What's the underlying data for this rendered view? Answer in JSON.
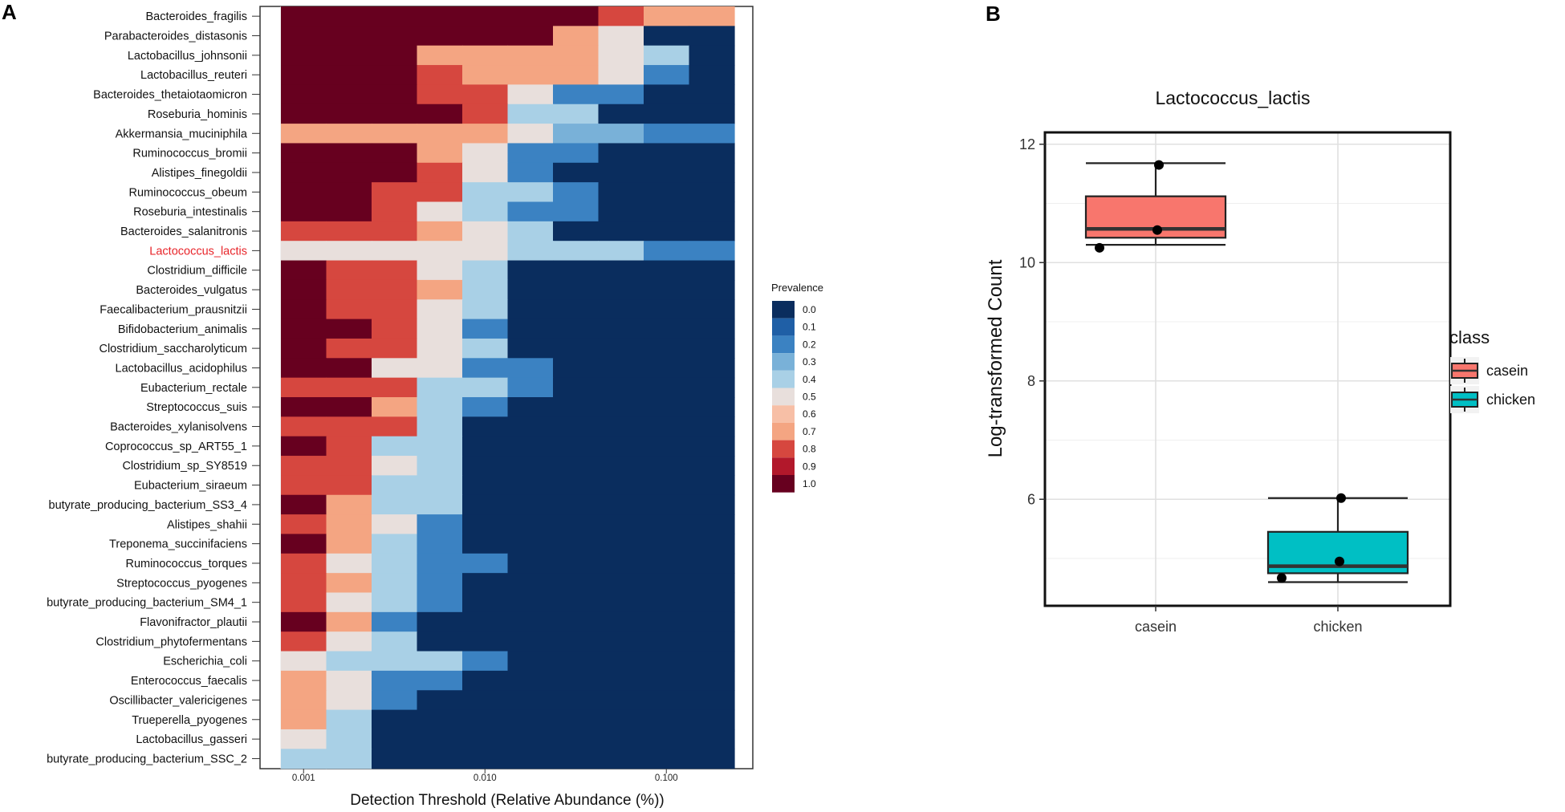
{
  "panel_labels": {
    "a": "A",
    "b": "B"
  },
  "chart_data": [
    {
      "type": "heatmap",
      "panel": "A",
      "title": "",
      "xlabel": "Detection Threshold (Relative Abundance (%))",
      "ylabel": "",
      "x_scale": "log",
      "x_ticks": [
        "0.001",
        "0.010",
        "0.100"
      ],
      "x_bins": 10,
      "highlight_row": "Lactococcus_lactis",
      "highlight_color": "#e8262b",
      "legend": {
        "title": "Prevalence",
        "levels": [
          "0.0",
          "0.1",
          "0.2",
          "0.3",
          "0.4",
          "0.5",
          "0.6",
          "0.7",
          "0.8",
          "0.9",
          "1.0"
        ],
        "colors": [
          "#0a2d5e",
          "#1f5fa6",
          "#3b82c2",
          "#79b1d8",
          "#a9d0e6",
          "#e8dfdc",
          "#f7bfa6",
          "#f4a582",
          "#d6473f",
          "#b2182b",
          "#67001f"
        ]
      },
      "rows": [
        {
          "name": "Bacteroides_fragilis",
          "values": [
            1.0,
            1.0,
            1.0,
            1.0,
            1.0,
            1.0,
            1.0,
            0.8,
            0.7,
            0.7
          ]
        },
        {
          "name": "Parabacteroides_distasonis",
          "values": [
            1.0,
            1.0,
            1.0,
            1.0,
            1.0,
            1.0,
            0.7,
            0.5,
            0.0,
            0.0
          ]
        },
        {
          "name": "Lactobacillus_johnsonii",
          "values": [
            1.0,
            1.0,
            1.0,
            0.7,
            0.7,
            0.7,
            0.7,
            0.5,
            0.4,
            0.0
          ]
        },
        {
          "name": "Lactobacillus_reuteri",
          "values": [
            1.0,
            1.0,
            1.0,
            0.8,
            0.7,
            0.7,
            0.7,
            0.5,
            0.2,
            0.0
          ]
        },
        {
          "name": "Bacteroides_thetaiotaomicron",
          "values": [
            1.0,
            1.0,
            1.0,
            0.8,
            0.8,
            0.5,
            0.2,
            0.2,
            0.0,
            0.0
          ]
        },
        {
          "name": "Roseburia_hominis",
          "values": [
            1.0,
            1.0,
            1.0,
            1.0,
            0.8,
            0.4,
            0.4,
            0.0,
            0.0,
            0.0
          ]
        },
        {
          "name": "Akkermansia_muciniphila",
          "values": [
            0.7,
            0.7,
            0.7,
            0.7,
            0.7,
            0.5,
            0.3,
            0.3,
            0.2,
            0.2
          ]
        },
        {
          "name": "Ruminococcus_bromii",
          "values": [
            1.0,
            1.0,
            1.0,
            0.7,
            0.5,
            0.2,
            0.2,
            0.0,
            0.0,
            0.0
          ]
        },
        {
          "name": "Alistipes_finegoldii",
          "values": [
            1.0,
            1.0,
            1.0,
            0.8,
            0.5,
            0.2,
            0.0,
            0.0,
            0.0,
            0.0
          ]
        },
        {
          "name": "Ruminococcus_obeum",
          "values": [
            1.0,
            1.0,
            0.8,
            0.8,
            0.4,
            0.4,
            0.2,
            0.0,
            0.0,
            0.0
          ]
        },
        {
          "name": "Roseburia_intestinalis",
          "values": [
            1.0,
            1.0,
            0.8,
            0.5,
            0.4,
            0.2,
            0.2,
            0.0,
            0.0,
            0.0
          ]
        },
        {
          "name": "Bacteroides_salanitronis",
          "values": [
            0.8,
            0.8,
            0.8,
            0.7,
            0.5,
            0.4,
            0.0,
            0.0,
            0.0,
            0.0
          ]
        },
        {
          "name": "Lactococcus_lactis",
          "values": [
            0.5,
            0.5,
            0.5,
            0.5,
            0.5,
            0.4,
            0.4,
            0.4,
            0.2,
            0.2
          ]
        },
        {
          "name": "Clostridium_difficile",
          "values": [
            1.0,
            0.8,
            0.8,
            0.5,
            0.4,
            0.0,
            0.0,
            0.0,
            0.0,
            0.0
          ]
        },
        {
          "name": "Bacteroides_vulgatus",
          "values": [
            1.0,
            0.8,
            0.8,
            0.7,
            0.4,
            0.0,
            0.0,
            0.0,
            0.0,
            0.0
          ]
        },
        {
          "name": "Faecalibacterium_prausnitzii",
          "values": [
            1.0,
            0.8,
            0.8,
            0.5,
            0.4,
            0.0,
            0.0,
            0.0,
            0.0,
            0.0
          ]
        },
        {
          "name": "Bifidobacterium_animalis",
          "values": [
            1.0,
            1.0,
            0.8,
            0.5,
            0.2,
            0.0,
            0.0,
            0.0,
            0.0,
            0.0
          ]
        },
        {
          "name": "Clostridium_saccharolyticum",
          "values": [
            1.0,
            0.8,
            0.8,
            0.5,
            0.4,
            0.0,
            0.0,
            0.0,
            0.0,
            0.0
          ]
        },
        {
          "name": "Lactobacillus_acidophilus",
          "values": [
            1.0,
            1.0,
            0.5,
            0.5,
            0.2,
            0.2,
            0.0,
            0.0,
            0.0,
            0.0
          ]
        },
        {
          "name": "Eubacterium_rectale",
          "values": [
            0.8,
            0.8,
            0.8,
            0.4,
            0.4,
            0.2,
            0.0,
            0.0,
            0.0,
            0.0
          ]
        },
        {
          "name": "Streptococcus_suis",
          "values": [
            1.0,
            1.0,
            0.7,
            0.4,
            0.2,
            0.0,
            0.0,
            0.0,
            0.0,
            0.0
          ]
        },
        {
          "name": "Bacteroides_xylanisolvens",
          "values": [
            0.8,
            0.8,
            0.8,
            0.4,
            0.0,
            0.0,
            0.0,
            0.0,
            0.0,
            0.0
          ]
        },
        {
          "name": "Coprococcus_sp_ART55_1",
          "values": [
            1.0,
            0.8,
            0.4,
            0.4,
            0.0,
            0.0,
            0.0,
            0.0,
            0.0,
            0.0
          ]
        },
        {
          "name": "Clostridium_sp_SY8519",
          "values": [
            0.8,
            0.8,
            0.5,
            0.4,
            0.0,
            0.0,
            0.0,
            0.0,
            0.0,
            0.0
          ]
        },
        {
          "name": "Eubacterium_siraeum",
          "values": [
            0.8,
            0.8,
            0.4,
            0.4,
            0.0,
            0.0,
            0.0,
            0.0,
            0.0,
            0.0
          ]
        },
        {
          "name": "butyrate_producing_bacterium_SS3_4",
          "values": [
            1.0,
            0.7,
            0.4,
            0.4,
            0.0,
            0.0,
            0.0,
            0.0,
            0.0,
            0.0
          ]
        },
        {
          "name": "Alistipes_shahii",
          "values": [
            0.8,
            0.7,
            0.5,
            0.2,
            0.0,
            0.0,
            0.0,
            0.0,
            0.0,
            0.0
          ]
        },
        {
          "name": "Treponema_succinifaciens",
          "values": [
            1.0,
            0.7,
            0.4,
            0.2,
            0.0,
            0.0,
            0.0,
            0.0,
            0.0,
            0.0
          ]
        },
        {
          "name": "Ruminococcus_torques",
          "values": [
            0.8,
            0.5,
            0.4,
            0.2,
            0.2,
            0.0,
            0.0,
            0.0,
            0.0,
            0.0
          ]
        },
        {
          "name": "Streptococcus_pyogenes",
          "values": [
            0.8,
            0.7,
            0.4,
            0.2,
            0.0,
            0.0,
            0.0,
            0.0,
            0.0,
            0.0
          ]
        },
        {
          "name": "butyrate_producing_bacterium_SM4_1",
          "values": [
            0.8,
            0.5,
            0.4,
            0.2,
            0.0,
            0.0,
            0.0,
            0.0,
            0.0,
            0.0
          ]
        },
        {
          "name": "Flavonifractor_plautii",
          "values": [
            1.0,
            0.7,
            0.2,
            0.0,
            0.0,
            0.0,
            0.0,
            0.0,
            0.0,
            0.0
          ]
        },
        {
          "name": "Clostridium_phytofermentans",
          "values": [
            0.8,
            0.5,
            0.4,
            0.0,
            0.0,
            0.0,
            0.0,
            0.0,
            0.0,
            0.0
          ]
        },
        {
          "name": "Escherichia_coli",
          "values": [
            0.5,
            0.4,
            0.4,
            0.4,
            0.2,
            0.0,
            0.0,
            0.0,
            0.0,
            0.0
          ]
        },
        {
          "name": "Enterococcus_faecalis",
          "values": [
            0.7,
            0.5,
            0.2,
            0.2,
            0.0,
            0.0,
            0.0,
            0.0,
            0.0,
            0.0
          ]
        },
        {
          "name": "Oscillibacter_valericigenes",
          "values": [
            0.7,
            0.5,
            0.2,
            0.0,
            0.0,
            0.0,
            0.0,
            0.0,
            0.0,
            0.0
          ]
        },
        {
          "name": "Trueperella_pyogenes",
          "values": [
            0.7,
            0.4,
            0.0,
            0.0,
            0.0,
            0.0,
            0.0,
            0.0,
            0.0,
            0.0
          ]
        },
        {
          "name": "Lactobacillus_gasseri",
          "values": [
            0.5,
            0.4,
            0.0,
            0.0,
            0.0,
            0.0,
            0.0,
            0.0,
            0.0,
            0.0
          ]
        },
        {
          "name": "butyrate_producing_bacterium_SSC_2",
          "values": [
            0.4,
            0.4,
            0.0,
            0.0,
            0.0,
            0.0,
            0.0,
            0.0,
            0.0,
            0.0
          ]
        }
      ]
    },
    {
      "type": "box",
      "panel": "B",
      "title": "Lactococcus_lactis",
      "xlabel": "",
      "ylabel": "Log-transformed Count",
      "categories": [
        "casein",
        "chicken"
      ],
      "ylim": [
        4.2,
        12.2
      ],
      "y_ticks": [
        6,
        8,
        10,
        12
      ],
      "legend": {
        "title": "class",
        "entries": [
          "casein",
          "chicken"
        ]
      },
      "series": [
        {
          "name": "casein",
          "color": "#f8766d",
          "min": 10.3,
          "q1": 10.42,
          "median": 10.57,
          "q3": 11.12,
          "max": 11.68,
          "points": [
            10.25,
            10.55,
            11.65
          ]
        },
        {
          "name": "chicken",
          "color": "#00bfc4",
          "min": 4.6,
          "q1": 4.75,
          "median": 4.87,
          "q3": 5.45,
          "max": 6.02,
          "points": [
            4.67,
            4.95,
            6.02
          ]
        }
      ]
    }
  ]
}
